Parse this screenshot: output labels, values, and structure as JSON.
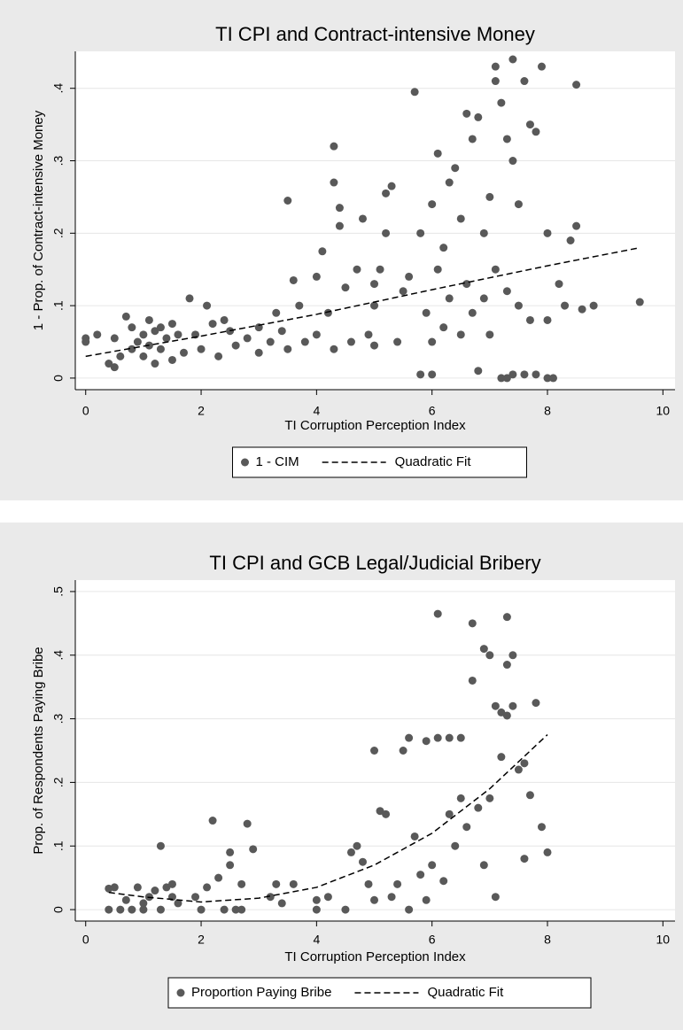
{
  "chart_data": [
    {
      "type": "scatter",
      "title": "TI CPI and Contract-intensive Money",
      "x_label": "TI Corruption Perception Index",
      "y_label": "1 - Prop. of Contract-intensive Money",
      "xlim": [
        -0.18,
        10.21
      ],
      "ylim": [
        -0.016,
        0.451
      ],
      "xticks": [
        0,
        2,
        4,
        6,
        8,
        10
      ],
      "yticks": [
        0,
        {
          "value": 0.1,
          "label": ".1"
        },
        {
          "value": 0.2,
          "label": ".2"
        },
        {
          "value": 0.3,
          "label": ".3"
        },
        {
          "value": 0.4,
          "label": ".4"
        }
      ],
      "grid": true,
      "legend": "bottom",
      "series": [
        {
          "name": "1 - CIM",
          "color": "#595959",
          "marker": "circle",
          "x": [
            0,
            0,
            0.2,
            0.4,
            0.5,
            0.5,
            0.6,
            0.7,
            0.8,
            0.8,
            0.9,
            1,
            1,
            1.1,
            1.1,
            1.2,
            1.2,
            1.3,
            1.3,
            1.4,
            1.5,
            1.5,
            1.6,
            1.7,
            1.8,
            1.9,
            2,
            2.1,
            2.2,
            2.3,
            2.4,
            2.5,
            2.6,
            2.8,
            3,
            3,
            3.2,
            3.3,
            3.4,
            3.5,
            3.5,
            3.6,
            3.7,
            3.8,
            4,
            4,
            4.1,
            4.2,
            4.3,
            4.3,
            4.3,
            4.4,
            4.4,
            4.5,
            4.6,
            4.7,
            4.8,
            4.9,
            5,
            5,
            5,
            5.1,
            5.2,
            5.2,
            5.3,
            5.4,
            5.5,
            5.6,
            5.7,
            5.8,
            5.8,
            5.9,
            6,
            6,
            6,
            6.1,
            6.1,
            6.2,
            6.2,
            6.3,
            6.3,
            6.4,
            6.5,
            6.5,
            6.6,
            6.6,
            6.7,
            6.7,
            6.8,
            6.8,
            6.9,
            6.9,
            7,
            7,
            7.1,
            7.1,
            7.1,
            7.2,
            7.2,
            7.3,
            7.3,
            7.3,
            7.4,
            7.4,
            7.4,
            7.5,
            7.5,
            7.6,
            7.6,
            7.7,
            7.7,
            7.8,
            7.8,
            7.9,
            8,
            8,
            8,
            8.1,
            8.2,
            8.3,
            8.4,
            8.5,
            8.5,
            8.6,
            8.8,
            9.6
          ],
          "values": [
            0.055,
            0.05,
            0.06,
            0.02,
            0.015,
            0.055,
            0.03,
            0.085,
            0.04,
            0.07,
            0.05,
            0.06,
            0.03,
            0.08,
            0.045,
            0.065,
            0.02,
            0.07,
            0.04,
            0.055,
            0.025,
            0.075,
            0.06,
            0.035,
            0.11,
            0.06,
            0.04,
            0.1,
            0.075,
            0.03,
            0.08,
            0.065,
            0.045,
            0.055,
            0.07,
            0.035,
            0.05,
            0.09,
            0.065,
            0.04,
            0.245,
            0.135,
            0.1,
            0.05,
            0.06,
            0.14,
            0.175,
            0.09,
            0.04,
            0.27,
            0.32,
            0.235,
            0.21,
            0.125,
            0.05,
            0.15,
            0.22,
            0.06,
            0.1,
            0.13,
            0.045,
            0.15,
            0.255,
            0.2,
            0.265,
            0.05,
            0.12,
            0.14,
            0.395,
            0.005,
            0.2,
            0.09,
            0.24,
            0.005,
            0.05,
            0.15,
            0.31,
            0.18,
            0.07,
            0.27,
            0.11,
            0.29,
            0.22,
            0.06,
            0.365,
            0.13,
            0.33,
            0.09,
            0.36,
            0.01,
            0.2,
            0.11,
            0.25,
            0.06,
            0.43,
            0.41,
            0.15,
            0.38,
            0,
            0.33,
            0.12,
            0,
            0.44,
            0.3,
            0.005,
            0.24,
            0.1,
            0.41,
            0.005,
            0.35,
            0.08,
            0.34,
            0.005,
            0.43,
            0.2,
            0.08,
            0,
            0,
            0.13,
            0.1,
            0.19,
            0.405,
            0.21,
            0.095,
            0.1,
            0.105
          ]
        },
        {
          "name": "Quadratic Fit",
          "color": "#000000",
          "line_style": "dash",
          "x": [
            0,
            2,
            4,
            6,
            8,
            9.6
          ],
          "values": [
            0.03,
            0.058,
            0.088,
            0.122,
            0.155,
            0.18
          ]
        }
      ]
    },
    {
      "type": "scatter",
      "title": "TI CPI and GCB Legal/Judicial Bribery",
      "x_label": "TI Corruption Perception Index",
      "y_label": "Prop. of Respondents Paying Bribe",
      "xlim": [
        -0.18,
        10.21
      ],
      "ylim": [
        -0.018,
        0.518
      ],
      "xticks": [
        0,
        2,
        4,
        6,
        8,
        10
      ],
      "yticks": [
        0,
        {
          "value": 0.1,
          "label": ".1"
        },
        {
          "value": 0.2,
          "label": ".2"
        },
        {
          "value": 0.3,
          "label": ".3"
        },
        {
          "value": 0.4,
          "label": ".4"
        },
        {
          "value": 0.5,
          "label": ".5"
        }
      ],
      "grid": true,
      "legend": "bottom",
      "series": [
        {
          "name": "Proportion Paying Bribe",
          "color": "#595959",
          "marker": "circle",
          "x": [
            0.4,
            0.4,
            0.5,
            0.6,
            0.7,
            0.8,
            0.9,
            1,
            1,
            1.1,
            1.2,
            1.3,
            1.3,
            1.4,
            1.5,
            1.5,
            1.6,
            1.9,
            2,
            2.1,
            2.2,
            2.3,
            2.4,
            2.5,
            2.5,
            2.6,
            2.7,
            2.7,
            2.8,
            2.9,
            3.2,
            3.3,
            3.4,
            3.6,
            4,
            4,
            4.2,
            4.5,
            4.6,
            4.7,
            4.8,
            4.9,
            5,
            5,
            5.1,
            5.2,
            5.3,
            5.4,
            5.5,
            5.6,
            5.6,
            5.7,
            5.8,
            5.9,
            5.9,
            6,
            6.1,
            6.1,
            6.2,
            6.3,
            6.3,
            6.4,
            6.5,
            6.5,
            6.6,
            6.7,
            6.7,
            6.8,
            6.9,
            6.9,
            7,
            7,
            7.1,
            7.1,
            7.2,
            7.2,
            7.3,
            7.3,
            7.3,
            7.4,
            7.4,
            7.5,
            7.6,
            7.6,
            7.7,
            7.8,
            7.9,
            8
          ],
          "values": [
            0.033,
            0,
            0.035,
            0,
            0.015,
            0,
            0.035,
            0.01,
            0,
            0.02,
            0.03,
            0.1,
            0,
            0.035,
            0.02,
            0.04,
            0.01,
            0.02,
            0,
            0.035,
            0.14,
            0.05,
            0,
            0.09,
            0.07,
            0,
            0.04,
            0,
            0.135,
            0.095,
            0.02,
            0.04,
            0.01,
            0.04,
            0.015,
            0,
            0.02,
            0,
            0.09,
            0.1,
            0.075,
            0.04,
            0.25,
            0.015,
            0.155,
            0.15,
            0.02,
            0.04,
            0.25,
            0.27,
            0,
            0.115,
            0.055,
            0.265,
            0.015,
            0.07,
            0.465,
            0.27,
            0.045,
            0.27,
            0.15,
            0.1,
            0.27,
            0.175,
            0.13,
            0.45,
            0.36,
            0.16,
            0.41,
            0.07,
            0.4,
            0.175,
            0.32,
            0.02,
            0.24,
            0.31,
            0.46,
            0.385,
            0.305,
            0.4,
            0.32,
            0.22,
            0.08,
            0.23,
            0.18,
            0.325,
            0.13,
            0.09
          ]
        },
        {
          "name": "Quadratic Fit",
          "color": "#000000",
          "line_style": "dash",
          "x": [
            0.4,
            1,
            2,
            3,
            4,
            5,
            6,
            7,
            8
          ],
          "values": [
            0.027,
            0.02,
            0.012,
            0.018,
            0.035,
            0.07,
            0.12,
            0.19,
            0.275
          ]
        }
      ]
    }
  ]
}
